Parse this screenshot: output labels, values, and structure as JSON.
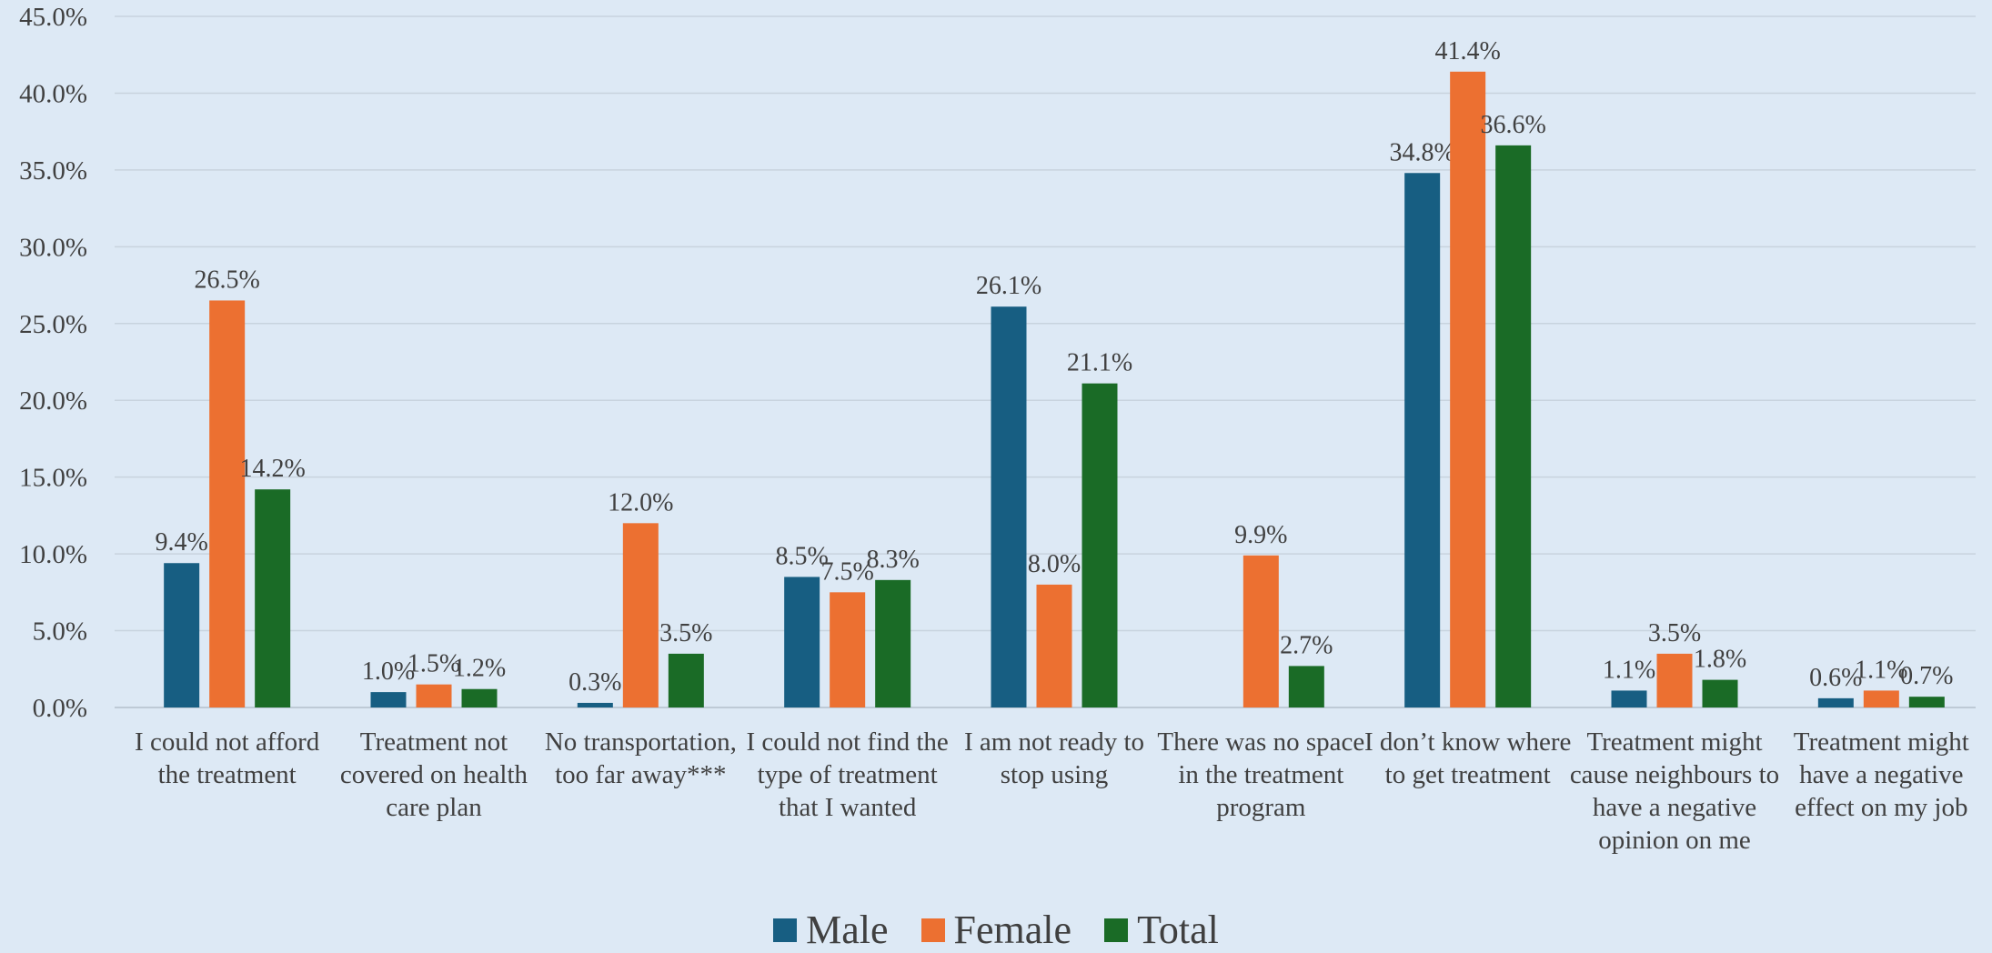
{
  "chart_data": {
    "type": "bar",
    "categories": [
      "I could not afford the treatment",
      "Treatment not covered on health care plan",
      "No transportation, too far away***",
      "I could not find the type of treatment that  I wanted",
      "I am not ready to stop using",
      "There was no space in the treatment program",
      "I don’t know where to get treatment",
      "Treatment might cause neighbours to have a negative opinion on me",
      "Treatment might have a negative effect on my job"
    ],
    "series": [
      {
        "name": "Male",
        "color": "#175e82",
        "values": [
          9.4,
          1.0,
          0.3,
          8.5,
          26.1,
          null,
          34.8,
          1.1,
          0.6
        ],
        "value_labels": [
          "9.4%",
          "1.0%",
          "0.3%",
          "8.5%",
          "26.1%",
          null,
          "34.8%",
          "1.1%",
          "0.6%"
        ]
      },
      {
        "name": "Female",
        "color": "#ec7031",
        "values": [
          26.5,
          1.5,
          12.0,
          7.5,
          8.0,
          9.9,
          41.4,
          3.5,
          1.1
        ],
        "value_labels": [
          "26.5%",
          "1.5%",
          "12.0%",
          "7.5%",
          "8.0%",
          "9.9%",
          "41.4%",
          "3.5%",
          "1.1%"
        ]
      },
      {
        "name": "Total",
        "color": "#1a6b26",
        "values": [
          14.2,
          1.2,
          3.5,
          8.3,
          21.1,
          2.7,
          36.6,
          1.8,
          0.7
        ],
        "value_labels": [
          "14.2%",
          "1.2%",
          "3.5%",
          "8.3%",
          "21.1%",
          "2.7%",
          "36.6%",
          "1.8%",
          "0.7%"
        ]
      }
    ],
    "ylim": [
      0,
      45
    ],
    "yticks": [
      {
        "value": 0,
        "label": "0.0%"
      },
      {
        "value": 5,
        "label": "5.0%"
      },
      {
        "value": 10,
        "label": "10.0%"
      },
      {
        "value": 15,
        "label": "15.0%"
      },
      {
        "value": 20,
        "label": "20.0%"
      },
      {
        "value": 25,
        "label": "25.0%"
      },
      {
        "value": 30,
        "label": "30.0%"
      },
      {
        "value": 35,
        "label": "35.0%"
      },
      {
        "value": 40,
        "label": "40.0%"
      },
      {
        "value": 45,
        "label": "45.0%"
      }
    ],
    "grid": true,
    "legend": "bottom"
  }
}
